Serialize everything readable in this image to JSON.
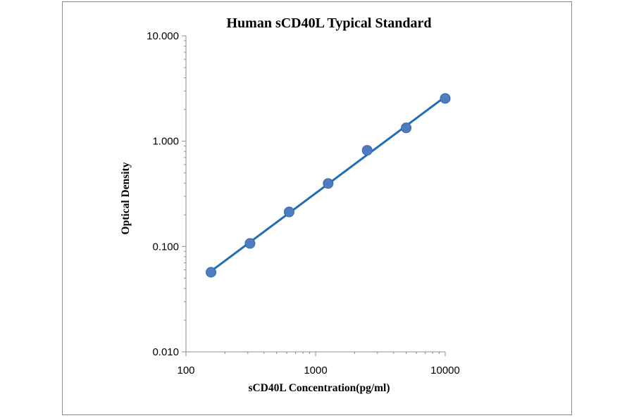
{
  "chart_data": {
    "type": "scatter",
    "title": "Human sCD40L Typical Standard",
    "xlabel": "sCD40L Concentration(pg/ml)",
    "ylabel": "Optical Density",
    "x_scale": "log",
    "y_scale": "log",
    "xlim": [
      100,
      10000
    ],
    "ylim": [
      0.01,
      10
    ],
    "x_ticks": [
      100,
      1000,
      10000
    ],
    "x_tick_labels": [
      "100",
      "1000",
      "10000"
    ],
    "y_ticks": [
      0.01,
      0.1,
      1,
      10
    ],
    "y_tick_labels": [
      "0.010",
      "0.100",
      "1.000",
      "10.000"
    ],
    "grid": false,
    "legend": "none",
    "series": [
      {
        "x": [
          156,
          312,
          625,
          1250,
          2500,
          5000,
          10000
        ],
        "y": [
          0.057,
          0.107,
          0.213,
          0.397,
          0.82,
          1.34,
          2.55
        ],
        "marker_color": "#4e7cc0",
        "trendline": "power",
        "trendline_color": "#1f6fb2"
      }
    ]
  }
}
